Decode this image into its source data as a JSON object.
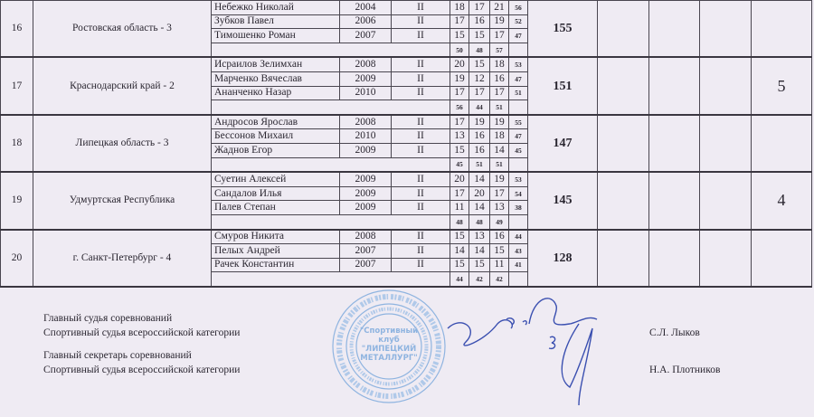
{
  "teams": [
    {
      "place_no": "16",
      "team": "Ростовская область - 3",
      "members": [
        {
          "name": "Небежко Николай",
          "year": "2004",
          "rank": "II",
          "s": [
            "18",
            "17",
            "21"
          ],
          "sum": "56"
        },
        {
          "name": "Зубков Павел",
          "year": "2006",
          "rank": "II",
          "s": [
            "17",
            "16",
            "19"
          ],
          "sum": "52"
        },
        {
          "name": "Тимошенко Роман",
          "year": "2007",
          "rank": "II",
          "s": [
            "15",
            "15",
            "17"
          ],
          "sum": "47"
        }
      ],
      "series_totals": [
        "50",
        "48",
        "57"
      ],
      "total": "155",
      "final_place": ""
    },
    {
      "place_no": "17",
      "team": "Краснодарский край - 2",
      "members": [
        {
          "name": "Исраилов Зелимхан",
          "year": "2008",
          "rank": "II",
          "s": [
            "20",
            "15",
            "18"
          ],
          "sum": "53"
        },
        {
          "name": "Марченко Вячеслав",
          "year": "2009",
          "rank": "II",
          "s": [
            "19",
            "12",
            "16"
          ],
          "sum": "47"
        },
        {
          "name": "Ананченко Назар",
          "year": "2010",
          "rank": "II",
          "s": [
            "17",
            "17",
            "17"
          ],
          "sum": "51"
        }
      ],
      "series_totals": [
        "56",
        "44",
        "51"
      ],
      "total": "151",
      "final_place": "5"
    },
    {
      "place_no": "18",
      "team": "Липецкая область - 3",
      "members": [
        {
          "name": "Андросов Ярослав",
          "year": "2008",
          "rank": "II",
          "s": [
            "17",
            "19",
            "19"
          ],
          "sum": "55"
        },
        {
          "name": "Бессонов Михаил",
          "year": "2010",
          "rank": "II",
          "s": [
            "13",
            "16",
            "18"
          ],
          "sum": "47"
        },
        {
          "name": "Жаднов Егор",
          "year": "2009",
          "rank": "II",
          "s": [
            "15",
            "16",
            "14"
          ],
          "sum": "45"
        }
      ],
      "series_totals": [
        "45",
        "51",
        "51"
      ],
      "total": "147",
      "final_place": ""
    },
    {
      "place_no": "19",
      "team": "Удмуртская Республика",
      "members": [
        {
          "name": "Суетин Алексей",
          "year": "2009",
          "rank": "II",
          "s": [
            "20",
            "14",
            "19"
          ],
          "sum": "53"
        },
        {
          "name": "Сандалов Илья",
          "year": "2009",
          "rank": "II",
          "s": [
            "17",
            "20",
            "17"
          ],
          "sum": "54"
        },
        {
          "name": "Палев Степан",
          "year": "2009",
          "rank": "II",
          "s": [
            "11",
            "14",
            "13"
          ],
          "sum": "38"
        }
      ],
      "series_totals": [
        "48",
        "48",
        "49"
      ],
      "total": "145",
      "final_place": "4"
    },
    {
      "place_no": "20",
      "team": "г. Санкт-Петербург - 4",
      "members": [
        {
          "name": "Смуров Никита",
          "year": "2008",
          "rank": "II",
          "s": [
            "15",
            "13",
            "16"
          ],
          "sum": "44"
        },
        {
          "name": "Пелых Андрей",
          "year": "2007",
          "rank": "II",
          "s": [
            "14",
            "14",
            "15"
          ],
          "sum": "43"
        },
        {
          "name": "Рачек Константин",
          "year": "2007",
          "rank": "II",
          "s": [
            "15",
            "15",
            "11"
          ],
          "sum": "41"
        }
      ],
      "series_totals": [
        "44",
        "42",
        "42"
      ],
      "total": "128",
      "final_place": ""
    }
  ],
  "footer": {
    "chief_judge_title": "Главный судья соревнований",
    "chief_judge_category": "Спортивный судья всероссийской категории",
    "chief_judge_name": "С.Л. Лыков",
    "secretary_title": "Главный секретарь соревнований",
    "secretary_category": "Спортивный судья всероссийской категории",
    "secretary_name": "Н.А. Плотников"
  },
  "stamp": {
    "outer_text": "Российская федерация Липецкая область",
    "inner_text": "Автономная некоммерческая физкультурно-оздоровительная организация",
    "center_text": [
      "\"Спортивный",
      "клуб",
      "\"ЛИПЕЦКИЙ",
      "МЕТАЛЛУРГ\""
    ],
    "bottom_text": "г. Липецк Р № 4664"
  },
  "colors": {
    "paper": "#efebf3",
    "stamp": "#8fb4e0",
    "signature": "#3a4fb0"
  }
}
